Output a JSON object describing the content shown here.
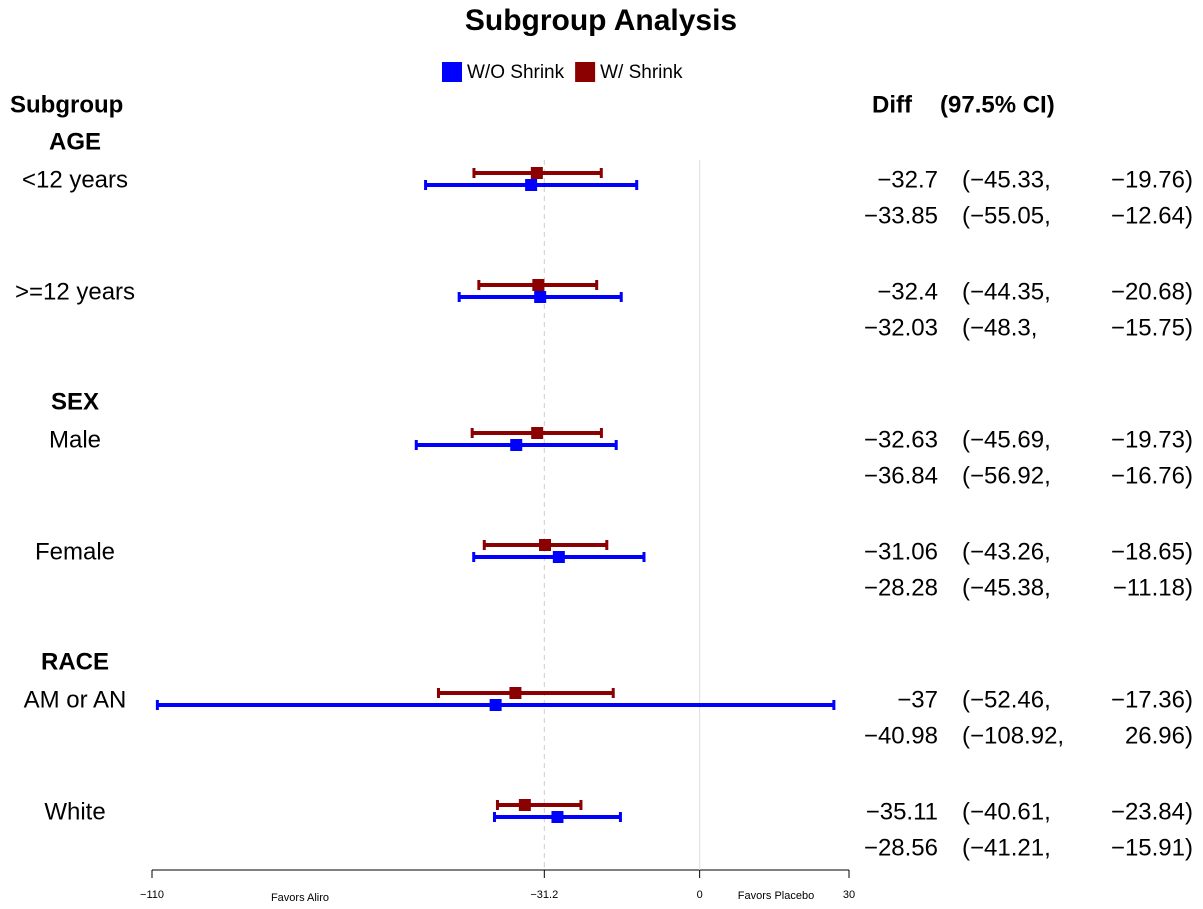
{
  "chart_data": {
    "type": "forest",
    "title": "Subgroup Analysis",
    "subgroup_header": "Subgroup",
    "diff_header": "Diff",
    "ci_header": "(97.5% CI)",
    "groups": [
      {
        "label": "AGE",
        "categories": [
          "<12 years",
          ">=12 years"
        ]
      },
      {
        "label": "SEX",
        "categories": [
          "Male",
          "Female"
        ]
      },
      {
        "label": "RACE",
        "categories": [
          "AM or AN",
          "White"
        ]
      }
    ],
    "series": [
      {
        "name": "W/O Shrink",
        "color": "#0000ff",
        "values": [
          -33.85,
          -32.03,
          -36.84,
          -28.28,
          -40.98,
          -28.56
        ],
        "lower": [
          -55.05,
          -48.3,
          -56.92,
          -45.38,
          -108.92,
          -41.21
        ],
        "upper": [
          -12.64,
          -15.75,
          -16.76,
          -11.18,
          26.96,
          -15.91
        ],
        "value_labels": [
          "−33.85",
          "−32.03",
          "−36.84",
          "−28.28",
          "−40.98",
          "−28.56"
        ],
        "lower_labels": [
          "(−55.05,",
          "(−48.3,",
          "(−56.92,",
          "(−45.38,",
          "(−108.92,",
          "(−41.21,"
        ],
        "upper_labels": [
          "−12.64)",
          "−15.75)",
          "−16.76)",
          "−11.18)",
          "26.96)",
          "−15.91)"
        ]
      },
      {
        "name": "W/ Shrink",
        "color": "#8b0000",
        "values": [
          -32.7,
          -32.4,
          -32.63,
          -31.06,
          -37,
          -35.11
        ],
        "lower": [
          -45.33,
          -44.35,
          -45.69,
          -43.26,
          -52.46,
          -40.61
        ],
        "upper": [
          -19.76,
          -20.68,
          -19.73,
          -18.65,
          -17.36,
          -23.84
        ],
        "value_labels": [
          "−32.7",
          "−32.4",
          "−32.63",
          "−31.06",
          "−37",
          "−35.11"
        ],
        "lower_labels": [
          "(−45.33,",
          "(−44.35,",
          "(−45.69,",
          "(−43.26,",
          "(−52.46,",
          "(−40.61,"
        ],
        "upper_labels": [
          "−19.76)",
          "−20.68)",
          "−19.73)",
          "−18.65)",
          "−17.36)",
          "−23.84)"
        ]
      }
    ],
    "xlim": [
      -110,
      30
    ],
    "xticks": [
      {
        "value": -110,
        "label": "−110"
      },
      {
        "value": -31.2,
        "label": "−31.2"
      },
      0,
      30
    ],
    "reference_lines": [
      {
        "value": -31.2,
        "style": "dashed"
      },
      {
        "value": 0,
        "style": "solid"
      }
    ],
    "left_annotation": "Favors Aliro",
    "right_annotation": "Favors Placebo"
  }
}
